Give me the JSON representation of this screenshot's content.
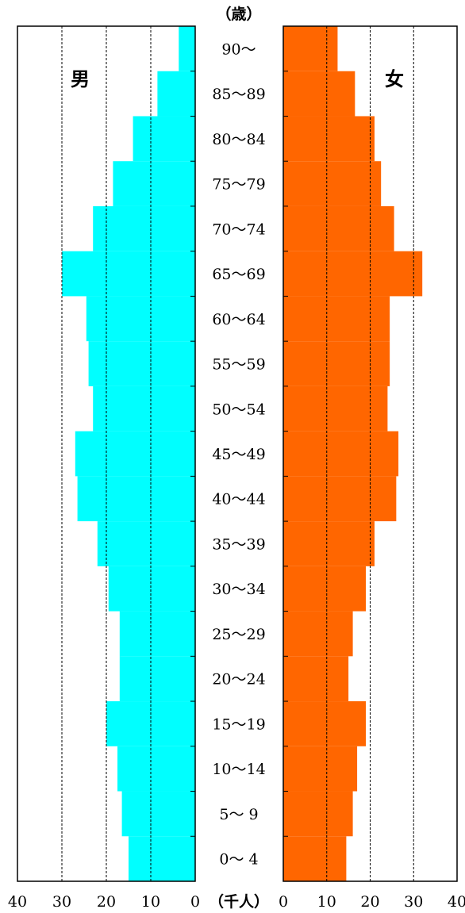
{
  "chart_data": {
    "type": "bar",
    "orientation": "horizontal-population-pyramid",
    "age_unit_label": "（歳）",
    "x_unit_label": "（千人）",
    "categories": [
      "90～",
      "85～89",
      "80～84",
      "75～79",
      "70～74",
      "65～69",
      "60～64",
      "55～59",
      "50～54",
      "45～49",
      "40～44",
      "35～39",
      "30～34",
      "25～29",
      "20～24",
      "15～19",
      "10～14",
      "5～ 9",
      "0～ 4"
    ],
    "series": [
      {
        "name": "男",
        "color": "#00FFFF",
        "values": [
          3.7,
          8.5,
          14.0,
          18.5,
          23.0,
          30.0,
          24.5,
          24.0,
          23.0,
          27.0,
          26.5,
          22.0,
          19.5,
          17.0,
          17.0,
          20.0,
          17.5,
          16.5,
          15.0
        ]
      },
      {
        "name": "女",
        "color": "#FF6600",
        "values": [
          12.5,
          16.5,
          21.0,
          22.5,
          25.5,
          32.0,
          24.5,
          24.5,
          24.0,
          26.5,
          26.0,
          21.0,
          19.0,
          16.0,
          15.0,
          19.0,
          17.0,
          16.0,
          14.5
        ]
      }
    ],
    "xlim": [
      0,
      40
    ],
    "x_ticks": [
      "40",
      "30",
      "20",
      "10",
      "0"
    ],
    "x_ticks_right": [
      "0",
      "10",
      "20",
      "30",
      "40"
    ],
    "gridlines": [
      10,
      20,
      30
    ],
    "grid_style": "dashed"
  }
}
